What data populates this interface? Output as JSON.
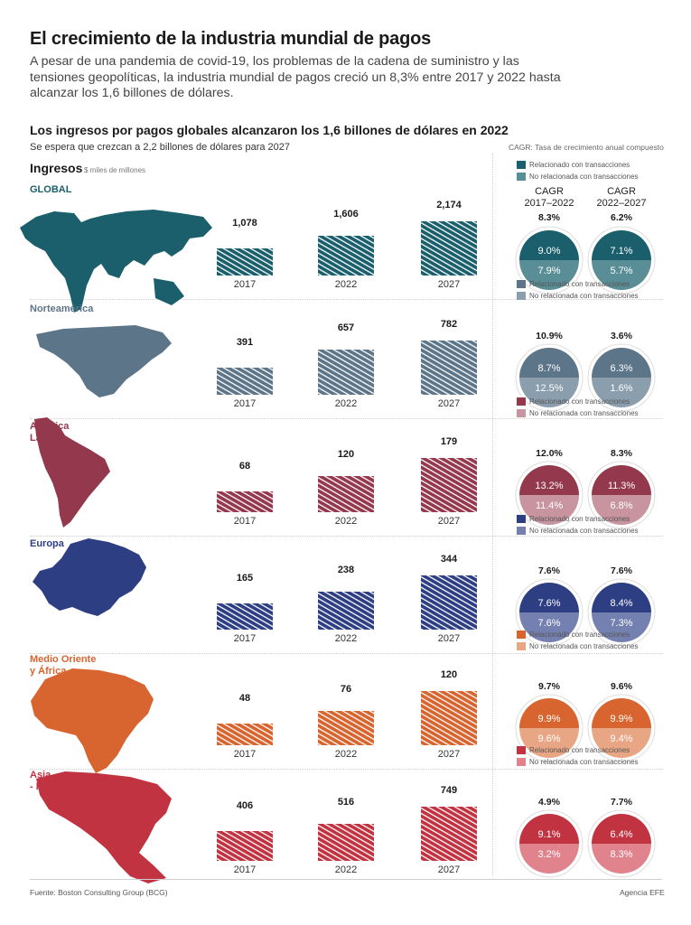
{
  "title": "El crecimiento de la industria mundial de pagos",
  "intro": "A pesar de una pandemia de covid-19, los problemas de la cadena de suministro y las tensiones geopolíticas, la industria mundial de pagos creció un 8,3% entre 2017 y 2022 hasta alcanzar los 1,6 billones de dólares.",
  "subtitle": "Los ingresos por pagos globales alcanzaron los 1,6 billones de dólares en 2022",
  "subtitle2": "Se espera que crezcan a 2,2 billones de dólares para 2027",
  "cagr_note": "CAGR: Tasa de crecimiento anual compuesto",
  "ingresos_label": "Ingresos",
  "ingresos_unit": "$ miles de millones",
  "cagr_head_1": "CAGR\n2017–2022",
  "cagr_head_2": "CAGR\n2022–2027",
  "legend_related": "Relacionado con transacciones",
  "legend_unrelated": "No relacionada con transacciones",
  "source": "Fuente: Boston Consulting Group (BCG)",
  "agency": "Agencia EFE",
  "chart_data": {
    "type": "bar",
    "categories": [
      "2017",
      "2022",
      "2027"
    ],
    "unit": "$ miles de millones",
    "regions": [
      {
        "name": "GLOBAL",
        "color": "#1a5f6b",
        "color_light": "#5a8e97",
        "values": [
          1078,
          1606,
          2174
        ],
        "value_labels": [
          "1,078",
          "1,606",
          "2,174"
        ],
        "cagr_2017_2022": "8.3%",
        "cagr_2022_2027": "6.2%",
        "related_2017_2022": "9.0%",
        "unrelated_2017_2022": "7.9%",
        "related_2022_2027": "7.1%",
        "unrelated_2022_2027": "5.7%"
      },
      {
        "name": "Norteamérica",
        "color": "#5c7589",
        "color_light": "#8b9eae",
        "values": [
          391,
          657,
          782
        ],
        "value_labels": [
          "391",
          "657",
          "782"
        ],
        "cagr_2017_2022": "10.9%",
        "cagr_2022_2027": "3.6%",
        "related_2017_2022": "8.7%",
        "unrelated_2017_2022": "12.5%",
        "related_2022_2027": "6.3%",
        "unrelated_2022_2027": "1.6%"
      },
      {
        "name": "América\nLatina",
        "color": "#94394d",
        "color_light": "#c794a0",
        "values": [
          68,
          120,
          179
        ],
        "value_labels": [
          "68",
          "120",
          "179"
        ],
        "cagr_2017_2022": "12.0%",
        "cagr_2022_2027": "8.3%",
        "related_2017_2022": "13.2%",
        "unrelated_2017_2022": "11.4%",
        "related_2022_2027": "11.3%",
        "unrelated_2022_2027": "6.8%"
      },
      {
        "name": "Europa",
        "color": "#2d3e83",
        "color_light": "#7480b0",
        "values": [
          165,
          238,
          344
        ],
        "value_labels": [
          "165",
          "238",
          "344"
        ],
        "cagr_2017_2022": "7.6%",
        "cagr_2022_2027": "7.6%",
        "related_2017_2022": "7.6%",
        "unrelated_2017_2022": "7.6%",
        "related_2022_2027": "8.4%",
        "unrelated_2022_2027": "7.3%"
      },
      {
        "name": "Medio Oriente\ny África",
        "color": "#d8652f",
        "color_light": "#e9a684",
        "values": [
          48,
          76,
          120
        ],
        "value_labels": [
          "48",
          "76",
          "120"
        ],
        "cagr_2017_2022": "9.7%",
        "cagr_2022_2027": "9.6%",
        "related_2017_2022": "9.9%",
        "unrelated_2017_2022": "9.6%",
        "related_2022_2027": "9.9%",
        "unrelated_2022_2027": "9.4%"
      },
      {
        "name": "Asia\n- Pacífico",
        "color": "#c23342",
        "color_light": "#e0838d",
        "values": [
          406,
          516,
          749
        ],
        "value_labels": [
          "406",
          "516",
          "749"
        ],
        "cagr_2017_2022": "4.9%",
        "cagr_2022_2027": "7.7%",
        "related_2017_2022": "9.1%",
        "unrelated_2017_2022": "3.2%",
        "related_2022_2027": "6.4%",
        "unrelated_2022_2027": "8.3%"
      }
    ]
  }
}
